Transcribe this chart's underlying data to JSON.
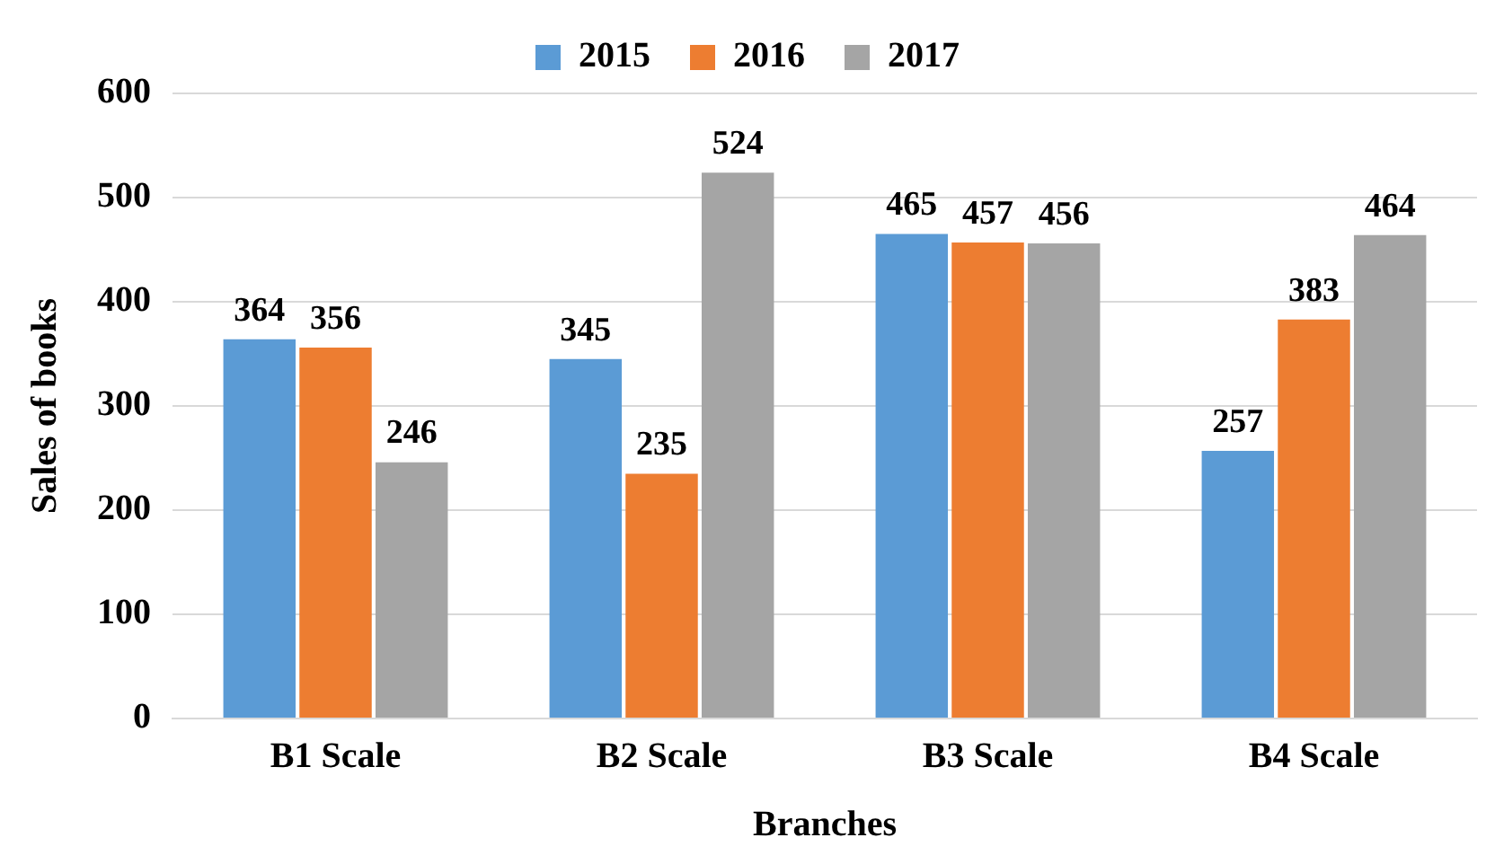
{
  "chart_data": {
    "type": "bar",
    "xlabel": "Branches",
    "ylabel": "Sales of books",
    "categories": [
      "B1 Scale",
      "B2 Scale",
      "B3 Scale",
      "B4 Scale"
    ],
    "series": [
      {
        "name": "2015",
        "color": "#5b9bd5",
        "values": [
          364,
          345,
          465,
          257
        ]
      },
      {
        "name": "2016",
        "color": "#ed7d31",
        "values": [
          356,
          235,
          457,
          383
        ]
      },
      {
        "name": "2017",
        "color": "#a5a5a5",
        "values": [
          246,
          524,
          456,
          464
        ]
      }
    ],
    "ylim": [
      0,
      600
    ],
    "yticks": [
      0,
      100,
      200,
      300,
      400,
      500,
      600
    ],
    "grid": "y",
    "legend": "top",
    "data_labels": true
  }
}
